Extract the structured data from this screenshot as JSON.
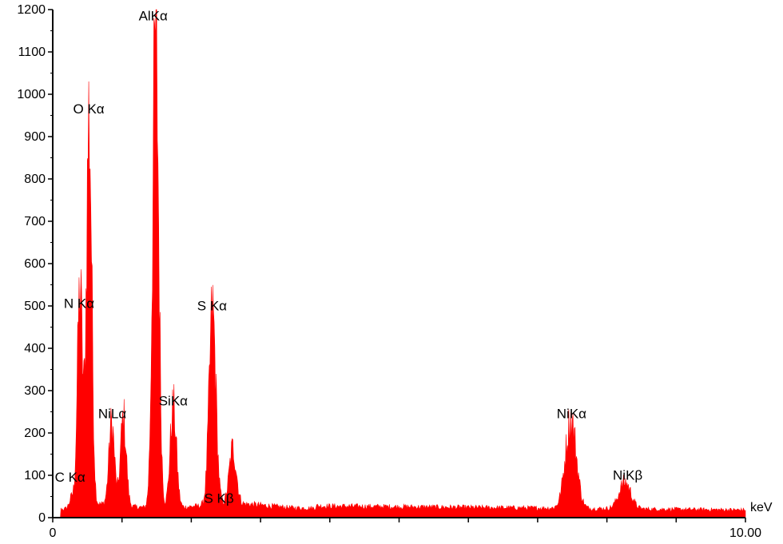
{
  "chart_data": {
    "type": "area",
    "title": "",
    "xlabel": "keV",
    "ylabel": "",
    "xlim": [
      0,
      10
    ],
    "ylim": [
      0,
      1200
    ],
    "grid": false,
    "fill_color": "#ff0000",
    "y_ticks": [
      "0",
      "100",
      "200",
      "300",
      "400",
      "500",
      "600",
      "700",
      "800",
      "900",
      "1000",
      "1100",
      "1200"
    ],
    "x_tick_labels": [
      {
        "x": 0,
        "label": "0"
      },
      {
        "x": 10,
        "label": "10.00"
      }
    ],
    "x_minor_ticks": [
      1,
      2,
      3,
      4,
      5,
      6,
      7,
      8,
      9
    ],
    "background_level": 25,
    "peaks": [
      {
        "name": "C Kα",
        "x": 0.277,
        "y": 40
      },
      {
        "name": "N Kα",
        "x": 0.392,
        "y": 520
      },
      {
        "name": "O Kα",
        "x": 0.525,
        "y": 930
      },
      {
        "name": "NiLα",
        "x": 0.851,
        "y": 210
      },
      {
        "name": "NiLα",
        "x": 1.02,
        "y": 225
      },
      {
        "name": "AlKα",
        "x": 1.486,
        "y": 1125
      },
      {
        "name": "SiKα",
        "x": 1.74,
        "y": 250
      },
      {
        "name": "S Kα",
        "x": 2.307,
        "y": 470
      },
      {
        "name": "S Kβ",
        "x": 2.6,
        "y": 150
      },
      {
        "name": "NiKα",
        "x": 7.48,
        "y": 220
      },
      {
        "name": "NiKβ",
        "x": 8.26,
        "y": 75
      }
    ],
    "annotations": [
      {
        "text": "C Kα",
        "x": 0.25,
        "y": 85
      },
      {
        "text": "N Kα",
        "x": 0.38,
        "y": 495
      },
      {
        "text": "O Kα",
        "x": 0.52,
        "y": 955
      },
      {
        "text": "NiLα",
        "x": 0.86,
        "y": 235
      },
      {
        "text": "AlKα",
        "x": 1.45,
        "y": 1175
      },
      {
        "text": "SiKα",
        "x": 1.74,
        "y": 265
      },
      {
        "text": "S Kα",
        "x": 2.3,
        "y": 490
      },
      {
        "text": "S Kβ",
        "x": 2.4,
        "y": 35
      },
      {
        "text": "NiKα",
        "x": 7.49,
        "y": 235
      },
      {
        "text": "NiKβ",
        "x": 8.3,
        "y": 90
      }
    ]
  }
}
